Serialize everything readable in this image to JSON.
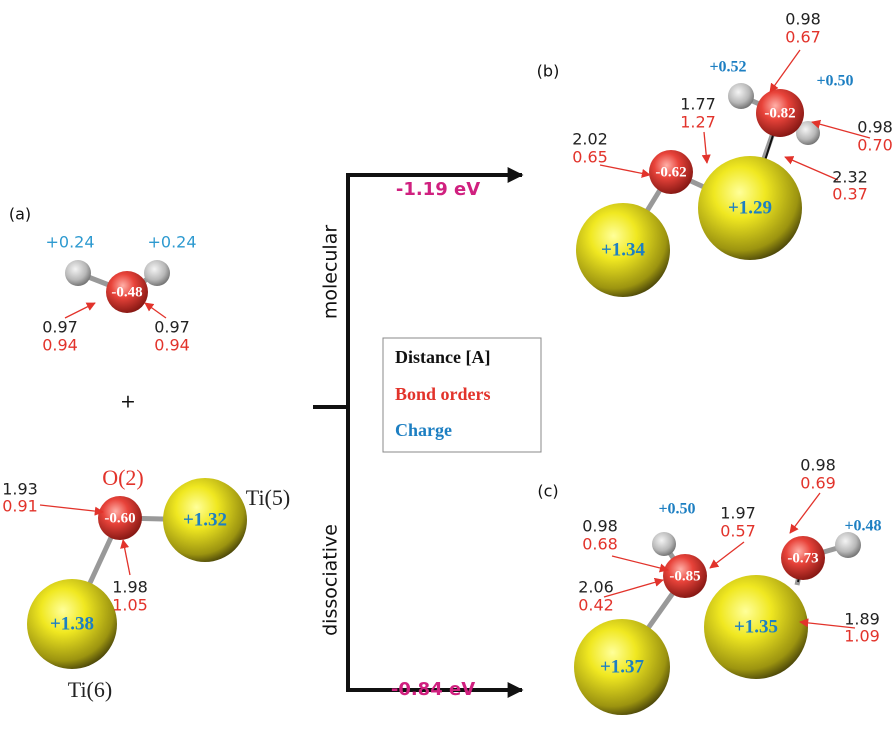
{
  "panel_a": {
    "label": "(a)",
    "h_charges": [
      "+0.24",
      "+0.24"
    ],
    "o_charge": "-0.48",
    "bonds": [
      {
        "distance": "0.97",
        "bond_order": "0.94"
      },
      {
        "distance": "0.97",
        "bond_order": "0.94"
      }
    ]
  },
  "plus": "+",
  "substrate": {
    "o_label": "O(2)",
    "ti5_label": "Ti(5)",
    "ti6_label": "Ti(6)",
    "charges": {
      "o": "-0.60",
      "ti5": "+1.32",
      "ti6": "+1.38"
    },
    "bonds": [
      {
        "distance": "1.93",
        "bond_order": "0.91"
      },
      {
        "distance": "1.98",
        "bond_order": "1.05"
      }
    ]
  },
  "pathways": {
    "molecular": {
      "label": "molecular",
      "energy": "-1.19 eV"
    },
    "dissociative": {
      "label": "dissociative",
      "energy": "-0.84 eV"
    }
  },
  "legend": {
    "distance": "Distance [A]",
    "bond_orders": "Bond orders",
    "charge": "Charge"
  },
  "panel_b": {
    "label": "(b)",
    "ti_charges": [
      "+1.34",
      "+1.29"
    ],
    "o_charges": [
      "-0.62",
      "-0.82"
    ],
    "h_charges": [
      "+0.52",
      "+0.50"
    ],
    "bonds": [
      {
        "distance": "0.98",
        "bond_order": "0.67"
      },
      {
        "distance": "1.77",
        "bond_order": "1.27"
      },
      {
        "distance": "0.98",
        "bond_order": "0.70"
      },
      {
        "distance": "2.02",
        "bond_order": "0.65"
      },
      {
        "distance": "2.32",
        "bond_order": "0.37"
      }
    ]
  },
  "panel_c": {
    "label": "(c)",
    "ti_charges": [
      "+1.37",
      "+1.35"
    ],
    "o_charges": [
      "-0.85",
      "-0.73"
    ],
    "h_charges": [
      "+0.50",
      "+0.48"
    ],
    "bonds": [
      {
        "distance": "0.98",
        "bond_order": "0.68"
      },
      {
        "distance": "1.97",
        "bond_order": "0.57"
      },
      {
        "distance": "0.98",
        "bond_order": "0.69"
      },
      {
        "distance": "2.06",
        "bond_order": "0.42"
      },
      {
        "distance": "1.89",
        "bond_order": "1.09"
      }
    ]
  }
}
